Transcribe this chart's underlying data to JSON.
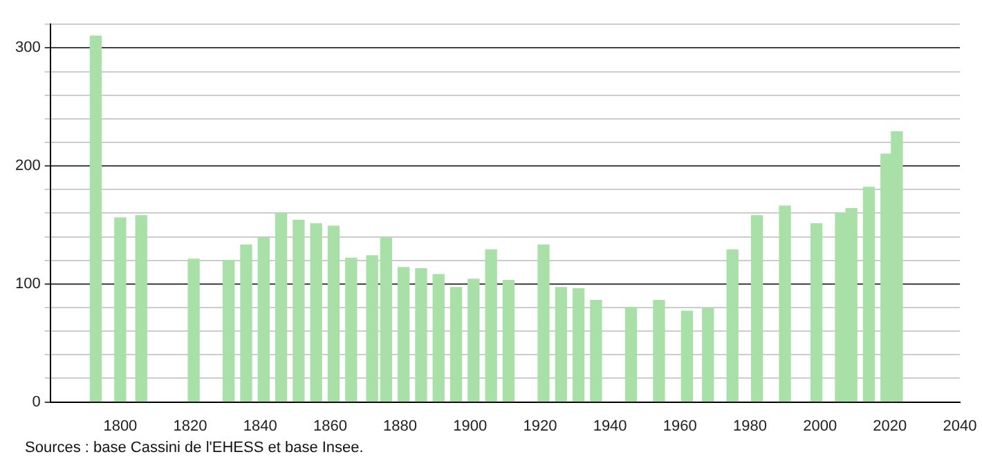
{
  "chart_data": {
    "type": "bar",
    "x": [
      1793,
      1800,
      1806,
      1821,
      1831,
      1836,
      1841,
      1846,
      1851,
      1856,
      1861,
      1866,
      1872,
      1876,
      1881,
      1886,
      1891,
      1896,
      1901,
      1906,
      1911,
      1921,
      1926,
      1931,
      1936,
      1946,
      1954,
      1962,
      1968,
      1975,
      1982,
      1990,
      1999,
      2006,
      2009,
      2014,
      2019,
      2022
    ],
    "values": [
      310,
      156,
      158,
      121,
      120,
      133,
      139,
      160,
      154,
      151,
      149,
      122,
      124,
      139,
      114,
      113,
      108,
      97,
      104,
      129,
      103,
      133,
      97,
      96,
      86,
      80,
      86,
      77,
      79,
      129,
      158,
      166,
      151,
      160,
      164,
      182,
      210,
      229
    ],
    "color": "#a8e0a8",
    "xlim": [
      1780,
      2040
    ],
    "xticks": [
      1800,
      1820,
      1840,
      1860,
      1880,
      1900,
      1920,
      1940,
      1960,
      1980,
      2000,
      2020,
      2040
    ],
    "ylim": [
      0,
      320
    ],
    "yticks": [
      0,
      {
        "value": 20,
        "label": null
      },
      {
        "value": 40,
        "label": null
      },
      {
        "value": 60,
        "label": null
      },
      {
        "value": 80,
        "label": null
      },
      100,
      {
        "value": 120,
        "label": null
      },
      {
        "value": 140,
        "label": null
      },
      {
        "value": 160,
        "label": null
      },
      {
        "value": 180,
        "label": null
      },
      200,
      {
        "value": 220,
        "label": null
      },
      {
        "value": 240,
        "label": null
      },
      {
        "value": 260,
        "label": null
      },
      {
        "value": 280,
        "label": null
      },
      300,
      {
        "value": 320,
        "label": null
      }
    ],
    "grid": "y",
    "legend": false,
    "annotations": [
      "Sources : base Cassini de l'EHESS et base Insee."
    ]
  }
}
